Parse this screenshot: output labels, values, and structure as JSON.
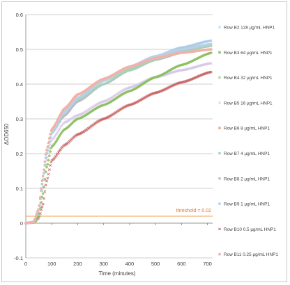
{
  "chart_data": {
    "type": "scatter",
    "title": "",
    "xlabel": "Time (minutes)",
    "ylabel": "ΔOD650",
    "xlim": [
      0,
      720
    ],
    "ylim": [
      -0.1,
      0.6
    ],
    "x_ticks": [
      0,
      100,
      200,
      300,
      400,
      500,
      600,
      700
    ],
    "y_ticks": [
      -0.1,
      0,
      0.1,
      0.2,
      0.3,
      0.4,
      0.5,
      0.6
    ],
    "y_tick_labels": [
      "-0.1",
      "0",
      "0.1",
      "0.2",
      "0.3",
      "0.4",
      "0.5",
      "0.6"
    ],
    "grid": "horizontal",
    "legend_position": "right",
    "threshold": {
      "label": "threshold = 0.02",
      "value": 0.02,
      "color": "#f0a050"
    },
    "series": [
      {
        "name": "Row B2 128 µg/mL HNP1",
        "color": "#a8cce8",
        "marker": "cross",
        "points": [
          [
            0,
            0.0
          ],
          [
            30,
            0.003
          ],
          [
            50,
            0.04
          ],
          [
            65,
            0.12
          ],
          [
            80,
            0.2
          ],
          [
            100,
            0.26
          ],
          [
            150,
            0.32
          ],
          [
            200,
            0.36
          ],
          [
            300,
            0.41
          ],
          [
            400,
            0.45
          ],
          [
            500,
            0.48
          ],
          [
            600,
            0.505
          ],
          [
            715,
            0.525
          ]
        ]
      },
      {
        "name": "Row B3 64 µg/mL HNP1",
        "color": "#8cc060",
        "marker": "circle",
        "points": [
          [
            0,
            0.0
          ],
          [
            30,
            0.002
          ],
          [
            50,
            0.02
          ],
          [
            65,
            0.08
          ],
          [
            80,
            0.16
          ],
          [
            100,
            0.22
          ],
          [
            150,
            0.27
          ],
          [
            200,
            0.3
          ],
          [
            300,
            0.34
          ],
          [
            400,
            0.38
          ],
          [
            500,
            0.42
          ],
          [
            600,
            0.455
          ],
          [
            715,
            0.49
          ]
        ]
      },
      {
        "name": "Row B4 32 µg/mL HNP1",
        "color": "#b0d4a8",
        "marker": "circle",
        "points": [
          [
            0,
            0.0
          ],
          [
            30,
            0.003
          ],
          [
            50,
            0.04
          ],
          [
            65,
            0.12
          ],
          [
            80,
            0.2
          ],
          [
            100,
            0.26
          ],
          [
            150,
            0.32
          ],
          [
            200,
            0.36
          ],
          [
            300,
            0.41
          ],
          [
            400,
            0.445
          ],
          [
            500,
            0.475
          ],
          [
            600,
            0.5
          ],
          [
            715,
            0.515
          ]
        ]
      },
      {
        "name": "Row B5 16 µg/mL HNP1",
        "color": "#d8c8e8",
        "marker": "cross",
        "points": [
          [
            0,
            0.0
          ],
          [
            30,
            0.003
          ],
          [
            50,
            0.03
          ],
          [
            65,
            0.1
          ],
          [
            80,
            0.18
          ],
          [
            100,
            0.24
          ],
          [
            150,
            0.29
          ],
          [
            200,
            0.31
          ],
          [
            300,
            0.35
          ],
          [
            400,
            0.39
          ],
          [
            500,
            0.42
          ],
          [
            600,
            0.44
          ],
          [
            715,
            0.46
          ]
        ]
      },
      {
        "name": "Row B6 8 µg/mL HNP1",
        "color": "#f0a878",
        "marker": "circle",
        "points": [
          [
            0,
            0.0
          ],
          [
            30,
            0.003
          ],
          [
            50,
            0.04
          ],
          [
            65,
            0.13
          ],
          [
            80,
            0.21
          ],
          [
            100,
            0.27
          ],
          [
            150,
            0.33
          ],
          [
            200,
            0.37
          ],
          [
            300,
            0.415
          ],
          [
            400,
            0.45
          ],
          [
            500,
            0.475
          ],
          [
            600,
            0.495
          ],
          [
            715,
            0.51
          ]
        ]
      },
      {
        "name": "Row B7 4 µg/mL HNP1",
        "color": "#a8d0b8",
        "marker": "circle",
        "points": [
          [
            0,
            0.0
          ],
          [
            30,
            0.003
          ],
          [
            50,
            0.04
          ],
          [
            65,
            0.12
          ],
          [
            80,
            0.2
          ],
          [
            100,
            0.26
          ],
          [
            150,
            0.32
          ],
          [
            200,
            0.355
          ],
          [
            300,
            0.4
          ],
          [
            400,
            0.44
          ],
          [
            500,
            0.47
          ],
          [
            600,
            0.495
          ],
          [
            715,
            0.51
          ]
        ]
      },
      {
        "name": "Row B8 2 µg/mL HNP1",
        "color": "#b8b8c8",
        "marker": "square",
        "points": [
          [
            0,
            0.0
          ],
          [
            30,
            0.003
          ],
          [
            50,
            0.04
          ],
          [
            65,
            0.12
          ],
          [
            80,
            0.2
          ],
          [
            100,
            0.26
          ],
          [
            150,
            0.31
          ],
          [
            200,
            0.35
          ],
          [
            300,
            0.4
          ],
          [
            400,
            0.44
          ],
          [
            500,
            0.47
          ],
          [
            600,
            0.49
          ],
          [
            715,
            0.5
          ]
        ]
      },
      {
        "name": "Row B9 1 µg/mL HNP1",
        "color": "#b8d0e8",
        "marker": "circle",
        "points": [
          [
            0,
            0.0
          ],
          [
            30,
            0.003
          ],
          [
            50,
            0.04
          ],
          [
            65,
            0.12
          ],
          [
            80,
            0.2
          ],
          [
            100,
            0.26
          ],
          [
            150,
            0.32
          ],
          [
            200,
            0.36
          ],
          [
            300,
            0.41
          ],
          [
            400,
            0.45
          ],
          [
            500,
            0.48
          ],
          [
            600,
            0.5
          ],
          [
            715,
            0.515
          ]
        ]
      },
      {
        "name": "Row B10 0.5 µg/mL HNP1",
        "color": "#c86868",
        "marker": "cross",
        "points": [
          [
            0,
            0.0
          ],
          [
            30,
            0.002
          ],
          [
            50,
            0.015
          ],
          [
            65,
            0.05
          ],
          [
            80,
            0.12
          ],
          [
            100,
            0.18
          ],
          [
            150,
            0.225
          ],
          [
            200,
            0.255
          ],
          [
            300,
            0.3
          ],
          [
            400,
            0.34
          ],
          [
            500,
            0.375
          ],
          [
            600,
            0.405
          ],
          [
            715,
            0.435
          ]
        ]
      },
      {
        "name": "Row B11 0.25 µg/mL HNP1",
        "color": "#f4b0a8",
        "marker": "circle",
        "points": [
          [
            0,
            0.0
          ],
          [
            30,
            0.003
          ],
          [
            50,
            0.04
          ],
          [
            65,
            0.13
          ],
          [
            80,
            0.21
          ],
          [
            100,
            0.27
          ],
          [
            150,
            0.33
          ],
          [
            200,
            0.37
          ],
          [
            300,
            0.415
          ],
          [
            400,
            0.45
          ],
          [
            500,
            0.475
          ],
          [
            600,
            0.49
          ],
          [
            715,
            0.5
          ]
        ]
      }
    ]
  }
}
